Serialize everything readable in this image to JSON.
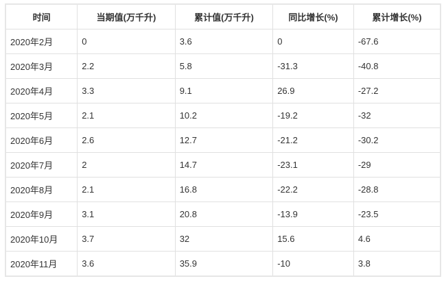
{
  "table": {
    "headers": [
      "时间",
      "当期值(万千升)",
      "累计值(万千升)",
      "同比增长(%)",
      "累计增长(%)"
    ],
    "rows": [
      [
        "2020年2月",
        "0",
        "3.6",
        "0",
        "-67.6"
      ],
      [
        "2020年3月",
        "2.2",
        "5.8",
        "-31.3",
        "-40.8"
      ],
      [
        "2020年4月",
        "3.3",
        "9.1",
        "26.9",
        "-27.2"
      ],
      [
        "2020年5月",
        "2.1",
        "10.2",
        "-19.2",
        "-32"
      ],
      [
        "2020年6月",
        "2.6",
        "12.7",
        "-21.2",
        "-30.2"
      ],
      [
        "2020年7月",
        "2",
        "14.7",
        "-23.1",
        "-29"
      ],
      [
        "2020年8月",
        "2.1",
        "16.8",
        "-22.2",
        "-28.8"
      ],
      [
        "2020年9月",
        "3.1",
        "20.8",
        "-13.9",
        "-23.5"
      ],
      [
        "2020年10月",
        "3.7",
        "32",
        "15.6",
        "4.6"
      ],
      [
        "2020年11月",
        "3.6",
        "35.9",
        "-10",
        "3.8"
      ]
    ]
  }
}
